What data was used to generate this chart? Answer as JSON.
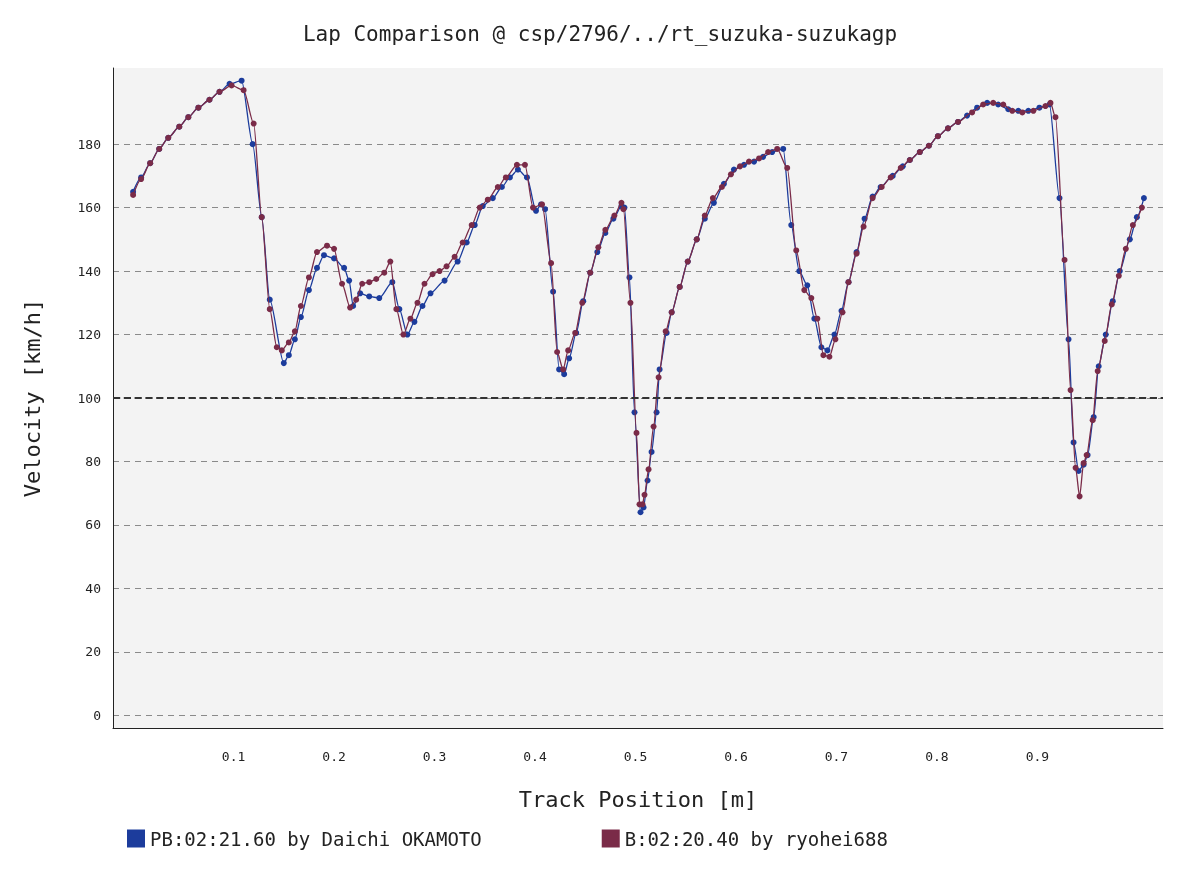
{
  "chart_data": {
    "type": "line",
    "title": "Lap Comparison @ csp/2796/../rt_suzuka-suzukagp",
    "xlabel": "Track Position [m]",
    "ylabel": "Velocity [km/h]",
    "xlim": [
      -0.02,
      1.025
    ],
    "xticks": [
      0.1,
      0.2,
      0.3,
      0.4,
      0.5,
      0.6,
      0.7,
      0.8,
      0.9
    ],
    "ylim": [
      -4,
      204
    ],
    "yticks": [
      0,
      20,
      40,
      60,
      80,
      100,
      120,
      140,
      160,
      180
    ],
    "grid": "y",
    "legend": "bottom left",
    "marker": "circle",
    "line_style": "solid",
    "ref_lines": [
      {
        "axis": "y",
        "value": 100,
        "color": "#333333",
        "line_style": "dashed"
      }
    ],
    "series": [
      {
        "name": "PB:02:21.60 by Daichi OKAMOTO",
        "color": "#1c3c9c",
        "x": [
          0,
          0.008,
          0.017,
          0.026,
          0.035,
          0.046,
          0.055,
          0.065,
          0.076,
          0.086,
          0.096,
          0.108,
          0.119,
          0.128,
          0.136,
          0.15,
          0.155,
          0.161,
          0.167,
          0.175,
          0.183,
          0.19,
          0.2,
          0.21,
          0.215,
          0.219,
          0.226,
          0.235,
          0.245,
          0.258,
          0.265,
          0.273,
          0.28,
          0.288,
          0.296,
          0.31,
          0.323,
          0.332,
          0.34,
          0.348,
          0.358,
          0.367,
          0.375,
          0.383,
          0.392,
          0.401,
          0.406,
          0.41,
          0.418,
          0.424,
          0.429,
          0.434,
          0.441,
          0.448,
          0.455,
          0.462,
          0.47,
          0.478,
          0.486,
          0.489,
          0.494,
          0.499,
          0.505,
          0.508,
          0.512,
          0.516,
          0.521,
          0.524,
          0.531,
          0.536,
          0.544,
          0.552,
          0.561,
          0.569,
          0.578,
          0.588,
          0.598,
          0.608,
          0.618,
          0.627,
          0.636,
          0.647,
          0.655,
          0.663,
          0.671,
          0.678,
          0.685,
          0.691,
          0.698,
          0.705,
          0.712,
          0.72,
          0.728,
          0.736,
          0.744,
          0.756,
          0.766,
          0.773,
          0.783,
          0.792,
          0.801,
          0.811,
          0.821,
          0.83,
          0.84,
          0.85,
          0.861,
          0.871,
          0.881,
          0.891,
          0.902,
          0.912,
          0.922,
          0.931,
          0.936,
          0.941,
          0.946,
          0.95,
          0.956,
          0.961,
          0.968,
          0.975,
          0.982,
          0.992,
          0.999,
          1.006
        ],
        "values": [
          165,
          169.5,
          174,
          178.5,
          182,
          185.5,
          188.5,
          191.5,
          194,
          196.5,
          199,
          200,
          180,
          157,
          131,
          111,
          113.5,
          118.5,
          125.5,
          134,
          141,
          145,
          144,
          141,
          137,
          129,
          133,
          132,
          131.5,
          136.5,
          128,
          120,
          124,
          129,
          133,
          137,
          143,
          149,
          154.5,
          160.5,
          163,
          166.5,
          169.5,
          172,
          169.5,
          159,
          161,
          159.5,
          133.5,
          109,
          107.5,
          112.5,
          120.5,
          130.5,
          139.5,
          146,
          152,
          156.5,
          160.5,
          160,
          138,
          95.5,
          64,
          65.5,
          74,
          83,
          95.5,
          109,
          120.5,
          127,
          135,
          143,
          150,
          156.5,
          161.5,
          167.5,
          172,
          173.5,
          174.5,
          176,
          177.5,
          178.5,
          154.5,
          140,
          135.5,
          125,
          116,
          115,
          120,
          127.5,
          136.5,
          146,
          156.5,
          163.5,
          166.5,
          170,
          173,
          175,
          177.5,
          179.5,
          182.5,
          185,
          187,
          189,
          191.5,
          193,
          192.5,
          191,
          190.5,
          190.5,
          191.5,
          192.5,
          163,
          118.5,
          86,
          77,
          79,
          82,
          94,
          110,
          120,
          130.5,
          140,
          150,
          157,
          163
        ]
      },
      {
        "name": "B:02:20.40 by ryohei688",
        "color": "#7a2b48",
        "x": [
          0,
          0.008,
          0.017,
          0.026,
          0.035,
          0.046,
          0.055,
          0.065,
          0.076,
          0.086,
          0.098,
          0.11,
          0.12,
          0.128,
          0.136,
          0.143,
          0.148,
          0.155,
          0.161,
          0.167,
          0.175,
          0.183,
          0.193,
          0.2,
          0.208,
          0.216,
          0.222,
          0.228,
          0.235,
          0.242,
          0.25,
          0.256,
          0.262,
          0.269,
          0.276,
          0.283,
          0.29,
          0.298,
          0.305,
          0.312,
          0.32,
          0.328,
          0.337,
          0.345,
          0.353,
          0.363,
          0.371,
          0.382,
          0.39,
          0.398,
          0.407,
          0.416,
          0.422,
          0.428,
          0.433,
          0.44,
          0.447,
          0.455,
          0.463,
          0.47,
          0.479,
          0.486,
          0.488,
          0.495,
          0.501,
          0.504,
          0.507,
          0.509,
          0.513,
          0.518,
          0.523,
          0.53,
          0.536,
          0.544,
          0.552,
          0.561,
          0.569,
          0.577,
          0.586,
          0.595,
          0.604,
          0.613,
          0.623,
          0.632,
          0.641,
          0.651,
          0.66,
          0.668,
          0.675,
          0.681,
          0.687,
          0.693,
          0.699,
          0.706,
          0.712,
          0.72,
          0.727,
          0.736,
          0.745,
          0.754,
          0.764,
          0.773,
          0.783,
          0.792,
          0.801,
          0.811,
          0.821,
          0.835,
          0.846,
          0.856,
          0.866,
          0.875,
          0.885,
          0.896,
          0.908,
          0.913,
          0.918,
          0.927,
          0.933,
          0.938,
          0.942,
          0.946,
          0.949,
          0.955,
          0.96,
          0.967,
          0.974,
          0.981,
          0.988,
          0.995,
          1.004
        ],
        "values": [
          164,
          169,
          174,
          178.5,
          182,
          185.5,
          188.5,
          191.5,
          194,
          196.5,
          198.5,
          197,
          186.5,
          157,
          128,
          116,
          115,
          117.5,
          121,
          129,
          138,
          146,
          148,
          147,
          136,
          128.5,
          131,
          136,
          136.5,
          137.5,
          139.5,
          143,
          128,
          120,
          125,
          130,
          136,
          139,
          140,
          141.5,
          144.5,
          149,
          154.5,
          160,
          162.5,
          166.5,
          169.5,
          173.5,
          173.5,
          160,
          161,
          142.5,
          114.5,
          109,
          115,
          120.5,
          130,
          139.5,
          147.5,
          153,
          157.5,
          161.5,
          159.5,
          130,
          89,
          66.5,
          66.5,
          69.5,
          77.5,
          91,
          106.5,
          121,
          127,
          135,
          143,
          150,
          157.5,
          163,
          166.5,
          170.5,
          173,
          174.5,
          175.5,
          177.5,
          178.5,
          172.5,
          146.5,
          134,
          131.5,
          125,
          113.5,
          113,
          118.5,
          127,
          136.5,
          145.5,
          154,
          163,
          166.5,
          169.5,
          172.5,
          175,
          177.5,
          179.5,
          182.5,
          185,
          187,
          190,
          192.5,
          193,
          192.5,
          190.5,
          190,
          190.5,
          192,
          193,
          188.5,
          143.5,
          102.5,
          78,
          69,
          79.5,
          82,
          93,
          108.5,
          118,
          129.5,
          138.5,
          147,
          154.5,
          160
        ]
      }
    ]
  }
}
